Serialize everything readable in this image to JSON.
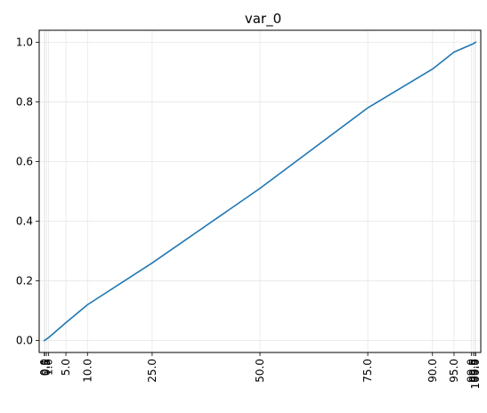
{
  "chart_data": {
    "type": "line",
    "title": "var_0",
    "xlabel": "",
    "ylabel": "",
    "grid": true,
    "xlim": [
      -1.2,
      101.2
    ],
    "ylim": [
      -0.04,
      1.04
    ],
    "x_ticks": [
      {
        "value": 0.0,
        "label": "0.0"
      },
      {
        "value": 0.1,
        "label": "0.1"
      },
      {
        "value": 0.5,
        "label": "0.5"
      },
      {
        "value": 1.0,
        "label": "1.0"
      },
      {
        "value": 5.0,
        "label": "5.0"
      },
      {
        "value": 10.0,
        "label": "10.0"
      },
      {
        "value": 25.0,
        "label": "25.0"
      },
      {
        "value": 50.0,
        "label": "50.0"
      },
      {
        "value": 75.0,
        "label": "75.0"
      },
      {
        "value": 90.0,
        "label": "90.0"
      },
      {
        "value": 95.0,
        "label": "95.0"
      },
      {
        "value": 99.0,
        "label": "99.0"
      },
      {
        "value": 99.5,
        "label": "99.5"
      },
      {
        "value": 99.9,
        "label": "99.9"
      },
      {
        "value": 100.0,
        "label": "100.0"
      }
    ],
    "y_ticks": [
      {
        "value": 0.0,
        "label": "0.0"
      },
      {
        "value": 0.2,
        "label": "0.2"
      },
      {
        "value": 0.4,
        "label": "0.4"
      },
      {
        "value": 0.6,
        "label": "0.6"
      },
      {
        "value": 0.8,
        "label": "0.8"
      },
      {
        "value": 1.0,
        "label": "1.0"
      }
    ],
    "series": [
      {
        "color": "#1f77b4",
        "x": [
          0.0,
          0.1,
          0.5,
          1.0,
          5.0,
          10.0,
          25.0,
          50.0,
          75.0,
          90.0,
          95.0,
          99.0,
          99.5,
          99.9,
          100.0
        ],
        "y": [
          0.0,
          0.001,
          0.005,
          0.01,
          0.06,
          0.12,
          0.26,
          0.51,
          0.78,
          0.91,
          0.967,
          0.992,
          0.995,
          0.999,
          1.0
        ]
      }
    ]
  }
}
